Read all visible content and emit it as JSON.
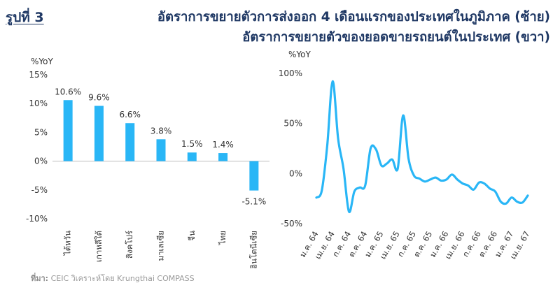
{
  "figure": {
    "label": "รูปที่ 3",
    "title_line1": "อัตราการขยายตัวการส่งออก 4 เดือนแรกของประเทศในภูมิภาค (ซ้าย)",
    "title_line2": "อัตราการขยายตัวของยอดขายรถยนต์ในประเทศ (ขวา)"
  },
  "source": {
    "label": "ที่มา:",
    "text": "CEIC วิเคราะห์โดย Krungthai COMPASS"
  },
  "colors": {
    "series": "#29b6f6",
    "title": "#1f3864",
    "axis_text": "#333333"
  },
  "chart_data": [
    {
      "type": "bar",
      "ylabel": "%YoY",
      "categories": [
        "ไต้หวัน",
        "เกาหลีใต้",
        "สิงคโปร์",
        "มาเลเซีย",
        "จีน",
        "ไทย",
        "อินโดนีเซีย"
      ],
      "values": [
        10.6,
        9.6,
        6.6,
        3.8,
        1.5,
        1.4,
        -5.1
      ],
      "data_labels": [
        "10.6%",
        "9.6%",
        "6.6%",
        "3.8%",
        "1.5%",
        "1.4%",
        "-5.1%"
      ],
      "ylim": [
        -10,
        15
      ],
      "yticks": [
        15,
        10,
        5,
        0,
        -5,
        -10
      ],
      "ytick_labels": [
        "15%",
        "10%",
        "5%",
        "0%",
        "-5%",
        "-10%"
      ],
      "grid": false,
      "legend": "none"
    },
    {
      "type": "line",
      "ylabel": "%YoY",
      "x": [
        "ม.ค. 64",
        "ก.พ. 64",
        "มี.ค. 64",
        "เม.ย. 64",
        "พ.ค. 64",
        "มิ.ย. 64",
        "ก.ค. 64",
        "ส.ค. 64",
        "ก.ย. 64",
        "ต.ค. 64",
        "พ.ย. 64",
        "ธ.ค. 64",
        "ม.ค. 65",
        "ก.พ. 65",
        "มี.ค. 65",
        "เม.ย. 65",
        "พ.ค. 65",
        "มิ.ย. 65",
        "ก.ค. 65",
        "ส.ค. 65",
        "ก.ย. 65",
        "ต.ค. 65",
        "พ.ย. 65",
        "ธ.ค. 65",
        "ม.ค. 66",
        "ก.พ. 66",
        "มี.ค. 66",
        "เม.ย. 66",
        "พ.ค. 66",
        "มิ.ย. 66",
        "ก.ค. 66",
        "ส.ค. 66",
        "ก.ย. 66",
        "ต.ค. 66",
        "พ.ย. 66",
        "ธ.ค. 66",
        "ม.ค. 67",
        "ก.พ. 67",
        "มี.ค. 67",
        "เม.ย. 67"
      ],
      "xtick_labels": [
        "ม.ค. 64",
        "เม.ย. 64",
        "ก.ค. 64",
        "ต.ค. 64",
        "ม.ค. 65",
        "เม.ย. 65",
        "ก.ค. 65",
        "ต.ค. 65",
        "ม.ค. 66",
        "เม.ย. 66",
        "ก.ค. 66",
        "ต.ค. 66",
        "ม.ค. 67",
        "เม.ย. 67"
      ],
      "values": [
        -24,
        -17,
        28,
        92,
        35,
        5,
        -38,
        -18,
        -14,
        -12,
        25,
        24,
        8,
        10,
        14,
        5,
        58,
        15,
        -2,
        -5,
        -8,
        -6,
        -4,
        -7,
        -6,
        -1,
        -6,
        -10,
        -12,
        -16,
        -9,
        -10,
        -15,
        -18,
        -28,
        -30,
        -24,
        -28,
        -29,
        -22
      ],
      "ylim": [
        -50,
        100
      ],
      "yticks": [
        100,
        50,
        0,
        -50
      ],
      "ytick_labels": [
        "100%",
        "50%",
        "0%",
        "-50%"
      ],
      "grid": false,
      "legend": "none"
    }
  ]
}
